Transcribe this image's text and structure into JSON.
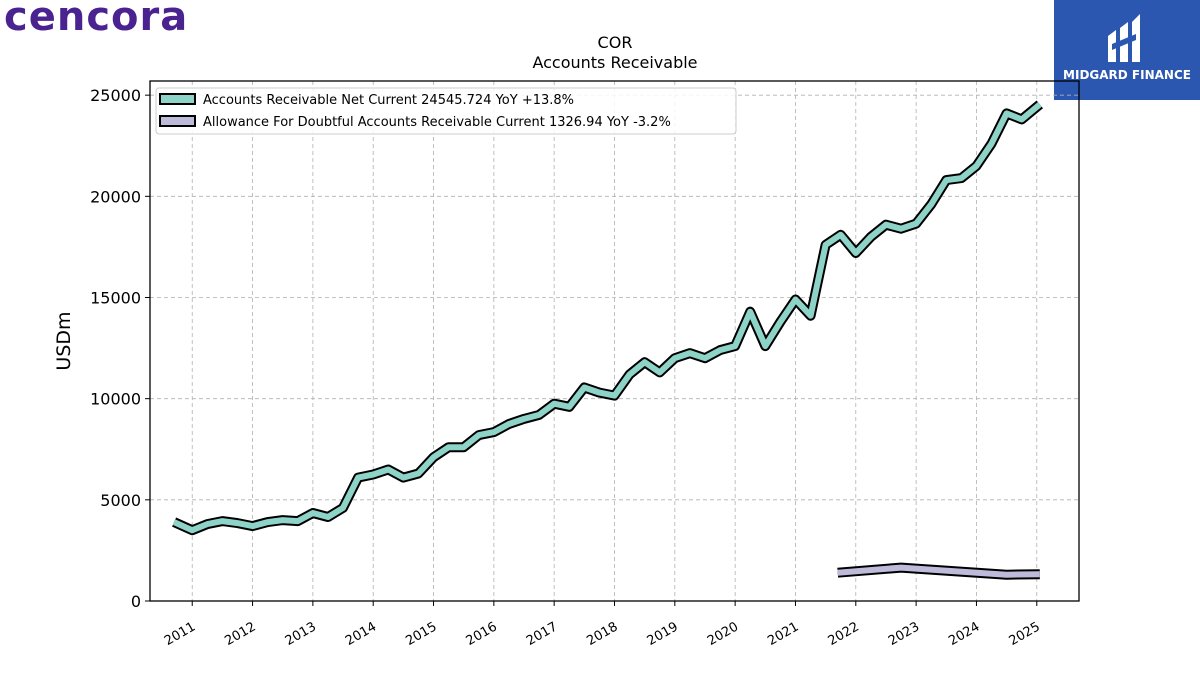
{
  "brand": {
    "logo_text": "cencora",
    "logo_color": "#4a2390"
  },
  "badge": {
    "text": "MIDGARD FINANCE",
    "color": "#2c57b0",
    "icon": "midgard-logo-icon"
  },
  "chart_data": {
    "type": "line",
    "title": "COR",
    "subtitle": "Accounts Receivable",
    "ylabel": "USDm",
    "xlabel": "",
    "ylim": [
      0,
      25700
    ],
    "xlim": [
      2010.3,
      2025.7
    ],
    "yticks": [
      0,
      5000,
      10000,
      15000,
      20000,
      25000
    ],
    "ytick_labels": [
      "0",
      "5000",
      "10000",
      "15000",
      "20000",
      "25000"
    ],
    "xticks": [
      2011,
      2012,
      2013,
      2014,
      2015,
      2016,
      2017,
      2018,
      2019,
      2020,
      2021,
      2022,
      2023,
      2024,
      2025
    ],
    "xtick_labels": [
      "2011",
      "2012",
      "2013",
      "2014",
      "2015",
      "2016",
      "2017",
      "2018",
      "2019",
      "2020",
      "2021",
      "2022",
      "2023",
      "2024",
      "2025"
    ],
    "grid": true,
    "legend_position": "top-left",
    "series": [
      {
        "name": "Accounts Receivable Net Current",
        "legend_label": "Accounts Receivable Net Current  24545.724 YoY +13.8%",
        "color": "#8dd3c7",
        "x": [
          2010.7,
          2011.0,
          2011.25,
          2011.5,
          2011.75,
          2012.0,
          2012.25,
          2012.5,
          2012.75,
          2013.0,
          2013.25,
          2013.5,
          2013.75,
          2014.0,
          2014.25,
          2014.5,
          2014.75,
          2015.0,
          2015.25,
          2015.5,
          2015.75,
          2016.0,
          2016.25,
          2016.5,
          2016.75,
          2017.0,
          2017.25,
          2017.5,
          2017.75,
          2018.0,
          2018.25,
          2018.5,
          2018.75,
          2019.0,
          2019.25,
          2019.5,
          2019.75,
          2020.0,
          2020.25,
          2020.5,
          2020.75,
          2021.0,
          2021.25,
          2021.5,
          2021.75,
          2022.0,
          2022.25,
          2022.5,
          2022.75,
          2023.0,
          2023.25,
          2023.5,
          2023.75,
          2024.0,
          2024.25,
          2024.5,
          2024.75,
          2025.05
        ],
        "y": [
          3900,
          3500,
          3800,
          3950,
          3850,
          3700,
          3900,
          4000,
          3950,
          4350,
          4150,
          4600,
          6100,
          6250,
          6500,
          6100,
          6300,
          7100,
          7600,
          7600,
          8200,
          8350,
          8750,
          9000,
          9200,
          9750,
          9600,
          10550,
          10300,
          10150,
          11200,
          11800,
          11300,
          12000,
          12250,
          12000,
          12400,
          12600,
          14300,
          12600,
          13800,
          14900,
          14100,
          17600,
          18100,
          17200,
          18000,
          18600,
          18400,
          18650,
          19600,
          20800,
          20900,
          21500,
          22600,
          24100,
          23800,
          24545
        ]
      },
      {
        "name": "Allowance For Doubtful Accounts Receivable Current",
        "legend_label": "Allowance For Doubtful Accounts Receivable Current  1326.94 YoY -3.2%",
        "color": "#bebada",
        "x": [
          2021.7,
          2022.75,
          2024.5,
          2025.05
        ],
        "y": [
          1400,
          1650,
          1300,
          1327
        ]
      }
    ]
  }
}
